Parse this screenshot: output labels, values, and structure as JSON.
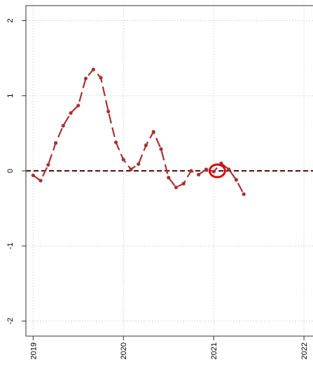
{
  "chart_data": {
    "type": "line",
    "title": "",
    "xlabel": "",
    "ylabel": "",
    "xlim": [
      2018.92,
      2022.1
    ],
    "ylim": [
      -2.2,
      2.2
    ],
    "x_ticks": [
      {
        "value": 2019,
        "label": "2019"
      },
      {
        "value": 2020,
        "label": "2020"
      },
      {
        "value": 2021,
        "label": "2021"
      },
      {
        "value": 2022,
        "label": "2022"
      }
    ],
    "y_ticks": [
      {
        "value": -2,
        "label": "-2"
      },
      {
        "value": -1,
        "label": "-1"
      },
      {
        "value": 0,
        "label": "0"
      },
      {
        "value": 1,
        "label": "1"
      },
      {
        "value": 2,
        "label": "2"
      }
    ],
    "grid": true,
    "reference_line": {
      "y": 0,
      "color": "#5a0a0a",
      "style": "dashed"
    },
    "series": [
      {
        "color": "#a83232",
        "line_style": "dashed",
        "marker": "point",
        "x": [
          2019.0,
          2019.083,
          2019.167,
          2019.25,
          2019.333,
          2019.417,
          2019.5,
          2019.583,
          2019.667,
          2019.75,
          2019.833,
          2019.917,
          2020.0,
          2020.083,
          2020.167,
          2020.25,
          2020.333,
          2020.417,
          2020.5,
          2020.583,
          2020.667,
          2020.75,
          2020.833,
          2020.917,
          2021.0,
          2021.083,
          2021.167,
          2021.25,
          2021.333
        ],
        "y": [
          -0.06,
          -0.13,
          0.08,
          0.37,
          0.6,
          0.77,
          0.87,
          1.23,
          1.35,
          1.24,
          0.79,
          0.38,
          0.15,
          0.02,
          0.09,
          0.34,
          0.52,
          0.29,
          -0.09,
          -0.22,
          -0.17,
          0.0,
          -0.05,
          0.02,
          -0.01,
          0.1,
          0.02,
          -0.12,
          -0.31
        ]
      }
    ],
    "annotations": [
      {
        "type": "circle",
        "x": 2021.04,
        "y": 0.0,
        "color": "#e00000"
      }
    ]
  }
}
